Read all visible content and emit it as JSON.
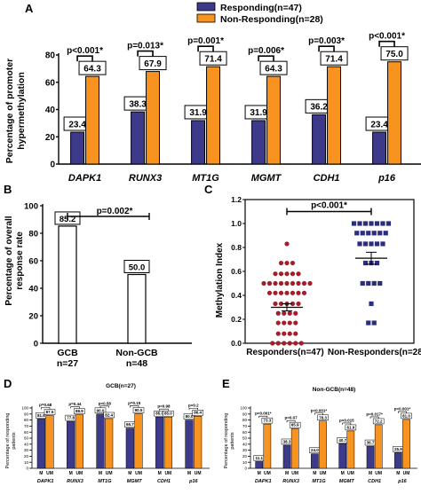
{
  "panel_a": {
    "letter": "A",
    "ylabel_line1": "Percentage of promoter",
    "ylabel_line2": "hypermethylation",
    "legend": [
      "Responding(n=47)",
      "Non-Responding(n=28)"
    ],
    "colors": {
      "responding": "#3d3a8c",
      "nonresponding": "#f7931e"
    }
  },
  "panel_b": {
    "letter": "B",
    "ylabel_line1": "Percentage of overall",
    "ylabel_line2": "response rate"
  },
  "panel_c": {
    "letter": "C",
    "ylabel": "Methylation Index"
  },
  "panel_d": {
    "letter": "D",
    "ylabel_line1": "Percentage of responding",
    "ylabel_line2": "patients"
  },
  "panel_e": {
    "letter": "E",
    "ylabel_line1": "Percentage of responding",
    "ylabel_line2": "patients"
  },
  "chart_data": [
    {
      "id": "A",
      "type": "bar",
      "categories": [
        "DAPK1",
        "RUNX3",
        "MT1G",
        "MGMT",
        "CDH1",
        "p16"
      ],
      "series": [
        {
          "name": "Responding(n=47)",
          "values": [
            23.4,
            38.3,
            31.9,
            31.9,
            36.2,
            23.4
          ]
        },
        {
          "name": "Non-Responding(n=28)",
          "values": [
            64.3,
            67.9,
            71.4,
            64.3,
            71.4,
            75.0
          ]
        }
      ],
      "pvalues": [
        "p<0.001*",
        "p=0.013*",
        "p=0.001*",
        "p=0.006*",
        "p=0.003*",
        "p<0.001*"
      ],
      "ylabel": "Percentage of promoter hypermethylation",
      "ylim": [
        0,
        80
      ],
      "yticks": [
        0,
        20,
        40,
        60,
        80
      ]
    },
    {
      "id": "B",
      "type": "bar",
      "categories": [
        "GCB",
        "Non-GCB"
      ],
      "category_sublabels": [
        "n=27",
        "n=48"
      ],
      "values": [
        85.2,
        50.0
      ],
      "pvalue": "p=0.002*",
      "ylabel": "Percentage of overall response rate",
      "ylim": [
        0,
        100
      ],
      "yticks": [
        0,
        20,
        40,
        60,
        80,
        100
      ]
    },
    {
      "id": "C",
      "type": "scatter",
      "categories": [
        "Responders(n=47)",
        "Non-Responders(n=28)"
      ],
      "groups": [
        {
          "name": "Responders(n=47)",
          "color": "#a31d2b",
          "mean": 0.3,
          "sem": 0.03,
          "levels": [
            [
              0.83,
              1
            ],
            [
              0.67,
              3
            ],
            [
              0.58,
              5
            ],
            [
              0.5,
              9
            ],
            [
              0.42,
              7
            ],
            [
              0.33,
              5
            ],
            [
              0.25,
              4
            ],
            [
              0.17,
              4
            ],
            [
              0.08,
              4
            ],
            [
              0.0,
              6
            ]
          ]
        },
        {
          "name": "Non-Responders(n=28)",
          "color": "#2d2d7d",
          "mean": 0.71,
          "sem": 0.05,
          "levels": [
            [
              1.0,
              7
            ],
            [
              0.92,
              6
            ],
            [
              0.83,
              5
            ],
            [
              0.67,
              3
            ],
            [
              0.5,
              4
            ],
            [
              0.33,
              1
            ],
            [
              0.17,
              2
            ]
          ]
        }
      ],
      "pvalue": "p<0.001*",
      "ylabel": "Methylation Index",
      "ylim": [
        0,
        1.2
      ],
      "yticks": [
        "0.0",
        "0.2",
        "0.4",
        "0.6",
        "0.8",
        "1.0",
        "1.2"
      ]
    },
    {
      "id": "D",
      "type": "bar",
      "title": "GCB(n=27)",
      "categories": [
        "DAPK1",
        "RUNX3",
        "MT1G",
        "MGMT",
        "CDH1",
        "p16"
      ],
      "series": [
        {
          "name": "M",
          "values": [
            81.8,
            77.8,
            90.0,
            66.7,
            85.0,
            80.0
          ]
        },
        {
          "name": "UM",
          "values": [
            87.5,
            88.9,
            82.4,
            90.5,
            85.0,
            86.4
          ]
        }
      ],
      "pvalues": [
        "p=0.68",
        "p=0.44",
        "p=0.58",
        "p=0.15",
        "p=0.98",
        "p=0.2"
      ],
      "group_labels": [
        "M",
        "UM"
      ],
      "ylabel": "Percentage of responding patients",
      "ylim": [
        0,
        100
      ],
      "yticks": [
        0,
        10,
        20,
        30,
        40,
        50,
        60,
        70,
        80,
        90,
        100
      ]
    },
    {
      "id": "E",
      "type": "bar",
      "title": "Non-GCB(n=48)",
      "categories": [
        "DAPK1",
        "RUNX3",
        "MT1G",
        "MGMT",
        "CDH1",
        "p16"
      ],
      "series": [
        {
          "name": "M",
          "values": [
            11.1,
            38.3,
            24.0,
            40.7,
            36.7,
            25.9
          ]
        },
        {
          "name": "UM",
          "values": [
            73.3,
            65.9,
            78.3,
            61.9,
            72.2,
            81.0
          ]
        }
      ],
      "pvalues": [
        "p<0.001*",
        "p=0.07",
        "p<0.001*",
        "p=0.015",
        "p=0.017*",
        "p<0.001*"
      ],
      "group_labels": [
        "M",
        "UM"
      ],
      "ylabel": "Percentage of responding patients",
      "ylim": [
        0,
        100
      ],
      "yticks": [
        0,
        10,
        20,
        30,
        40,
        50,
        60,
        70,
        80,
        90,
        100
      ]
    }
  ]
}
